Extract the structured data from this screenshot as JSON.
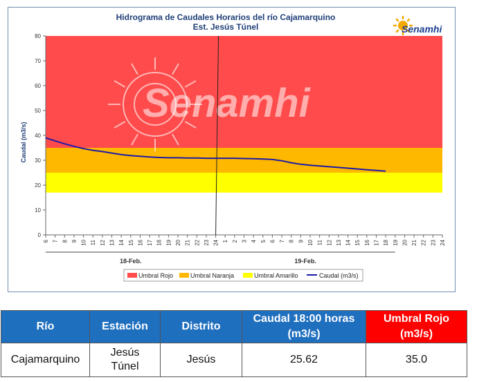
{
  "chart_data": {
    "type": "line",
    "title": "Hidrograma de Caudales Horarios del río Cajamarquino",
    "subtitle": "Est. Jesús Túnel",
    "ylabel": "Caudal  (m3/s)",
    "xlabel": "",
    "ylim": [
      0,
      80
    ],
    "yticks": [
      0,
      10,
      20,
      30,
      40,
      50,
      60,
      70,
      80
    ],
    "xticks": [
      "6",
      "7",
      "8",
      "9",
      "10",
      "11",
      "12",
      "13",
      "14",
      "15",
      "16",
      "17",
      "18",
      "19",
      "20",
      "21",
      "22",
      "23",
      "24",
      "1",
      "2",
      "3",
      "4",
      "5",
      "6",
      "7",
      "8",
      "9",
      "10",
      "11",
      "12",
      "13",
      "14",
      "15",
      "16",
      "17",
      "18",
      "19",
      "20",
      "21",
      "22",
      "23",
      "24"
    ],
    "day_groups": [
      {
        "label": "18-Feb.",
        "from": 0,
        "to": 18
      },
      {
        "label": "19-Feb.",
        "from": 18,
        "to": 37
      }
    ],
    "bands": [
      {
        "name": "Umbral Rojo",
        "from": 35,
        "to": 80,
        "color": "#ff4b4b"
      },
      {
        "name": "Umbral Naranja",
        "from": 25,
        "to": 35,
        "color": "#ffb800"
      },
      {
        "name": "Umbral Amarillo",
        "from": 17,
        "to": 25,
        "color": "#ffff00"
      }
    ],
    "series": [
      {
        "name": "Caudal (m3/s)",
        "color": "#1a1aa8",
        "x_index": [
          0,
          1,
          2,
          3,
          4,
          5,
          6,
          7,
          8,
          9,
          10,
          11,
          12,
          13,
          14,
          15,
          16,
          17,
          18,
          19,
          20,
          21,
          22,
          23,
          24,
          25,
          26,
          27,
          28,
          29,
          30,
          31,
          32,
          33,
          34,
          35,
          36
        ],
        "values": [
          39.0,
          37.8,
          36.6,
          35.6,
          34.7,
          34.0,
          33.5,
          32.9,
          32.3,
          31.9,
          31.6,
          31.3,
          31.1,
          31.0,
          31.0,
          30.9,
          30.9,
          30.8,
          30.8,
          30.8,
          30.8,
          30.7,
          30.6,
          30.5,
          30.3,
          29.8,
          29.0,
          28.4,
          28.0,
          27.7,
          27.4,
          27.1,
          26.8,
          26.5,
          26.2,
          25.9,
          25.6
        ]
      }
    ],
    "current_time_index": 18,
    "legend_position": "bottom",
    "watermark": "Senamhi"
  },
  "logo": {
    "text": "Senamhi"
  },
  "table": {
    "headers": {
      "rio": "Río",
      "estacion": "Estación",
      "distrito": "Distrito",
      "caudal_l1": "Caudal  18:00 horas",
      "caudal_l2": "(m3/s)",
      "umbral_l1": "Umbral Rojo",
      "umbral_l2": "(m3/s)"
    },
    "row": {
      "rio": "Cajamarquino",
      "estacion_l1": "Jesús",
      "estacion_l2": "Túnel",
      "distrito": "Jesús",
      "caudal": "25.62",
      "umbral": "35.0"
    }
  }
}
